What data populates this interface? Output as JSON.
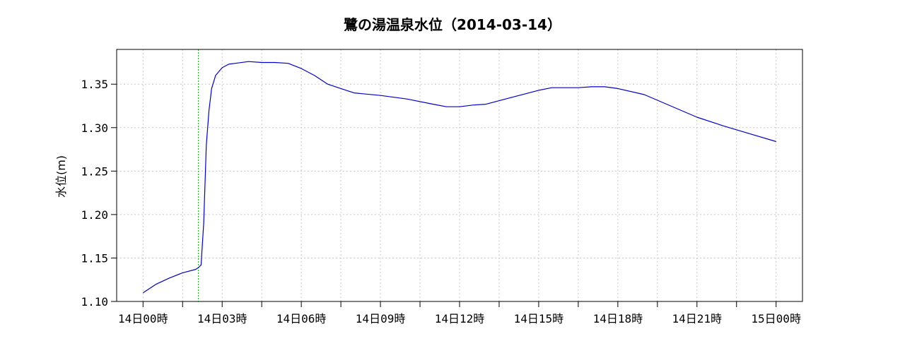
{
  "chart_data": {
    "type": "line",
    "title": "鷺の湯温泉水位（2014-03-14）",
    "xlabel": "",
    "ylabel": "水位(m)",
    "x_unit": "hours from 14日00時",
    "xlim": [
      -1,
      25
    ],
    "ylim": [
      1.1,
      1.39
    ],
    "grid": true,
    "x_ticks": [
      {
        "value": 0,
        "label": "14日00時"
      },
      {
        "value": 3,
        "label": "14日03時"
      },
      {
        "value": 6,
        "label": "14日06時"
      },
      {
        "value": 9,
        "label": "14日09時"
      },
      {
        "value": 12,
        "label": "14日12時"
      },
      {
        "value": 15,
        "label": "14日15時"
      },
      {
        "value": 18,
        "label": "14日18時"
      },
      {
        "value": 21,
        "label": "14日21時"
      },
      {
        "value": 24,
        "label": "15日00時"
      }
    ],
    "y_ticks": [
      {
        "value": 1.1,
        "label": "1.10"
      },
      {
        "value": 1.15,
        "label": "1.15"
      },
      {
        "value": 1.2,
        "label": "1.20"
      },
      {
        "value": 1.25,
        "label": "1.25"
      },
      {
        "value": 1.3,
        "label": "1.30"
      },
      {
        "value": 1.35,
        "label": "1.35"
      }
    ],
    "marker_line": {
      "x": 2.1,
      "color": "#00aa00"
    },
    "series": [
      {
        "color": "#0000cc",
        "x": [
          0,
          0.5,
          1.0,
          1.5,
          2.0,
          2.1,
          2.2,
          2.3,
          2.4,
          2.5,
          2.6,
          2.75,
          3.0,
          3.25,
          3.5,
          4.0,
          4.5,
          5.0,
          5.5,
          6.0,
          6.5,
          7.0,
          7.5,
          8.0,
          9.0,
          10.0,
          11.0,
          11.5,
          12.0,
          12.5,
          13.0,
          14.0,
          15.0,
          15.5,
          16.0,
          16.5,
          17.0,
          17.5,
          18.0,
          19.0,
          20.0,
          21.0,
          22.0,
          23.0,
          24.0
        ],
        "values": [
          1.11,
          1.12,
          1.127,
          1.133,
          1.137,
          1.139,
          1.142,
          1.19,
          1.28,
          1.32,
          1.345,
          1.36,
          1.369,
          1.373,
          1.374,
          1.376,
          1.375,
          1.375,
          1.374,
          1.368,
          1.36,
          1.35,
          1.345,
          1.34,
          1.337,
          1.333,
          1.327,
          1.324,
          1.324,
          1.326,
          1.327,
          1.335,
          1.343,
          1.346,
          1.346,
          1.346,
          1.347,
          1.347,
          1.345,
          1.338,
          1.325,
          1.312,
          1.302,
          1.293,
          1.284
        ]
      }
    ]
  }
}
